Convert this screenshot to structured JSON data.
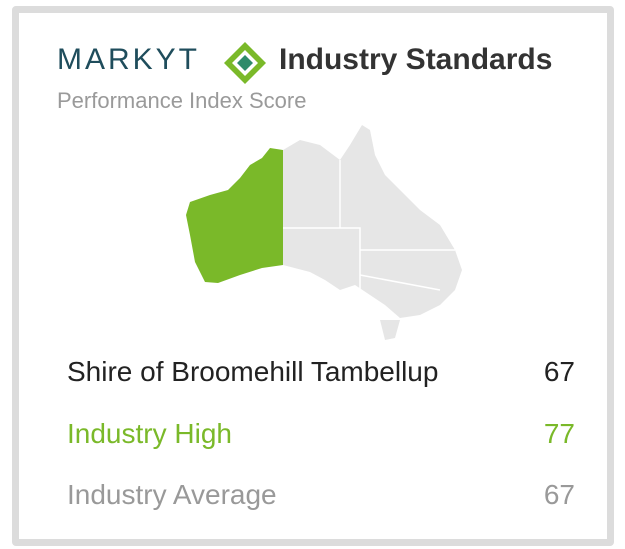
{
  "brand": "MARKYT",
  "title": "Industry Standards",
  "subtitle": "Performance Index Score",
  "rows": [
    {
      "label": "Shire of Broomehill Tambellup",
      "value": "67"
    },
    {
      "label": "Industry High",
      "value": "77"
    },
    {
      "label": "Industry Average",
      "value": "67"
    }
  ]
}
